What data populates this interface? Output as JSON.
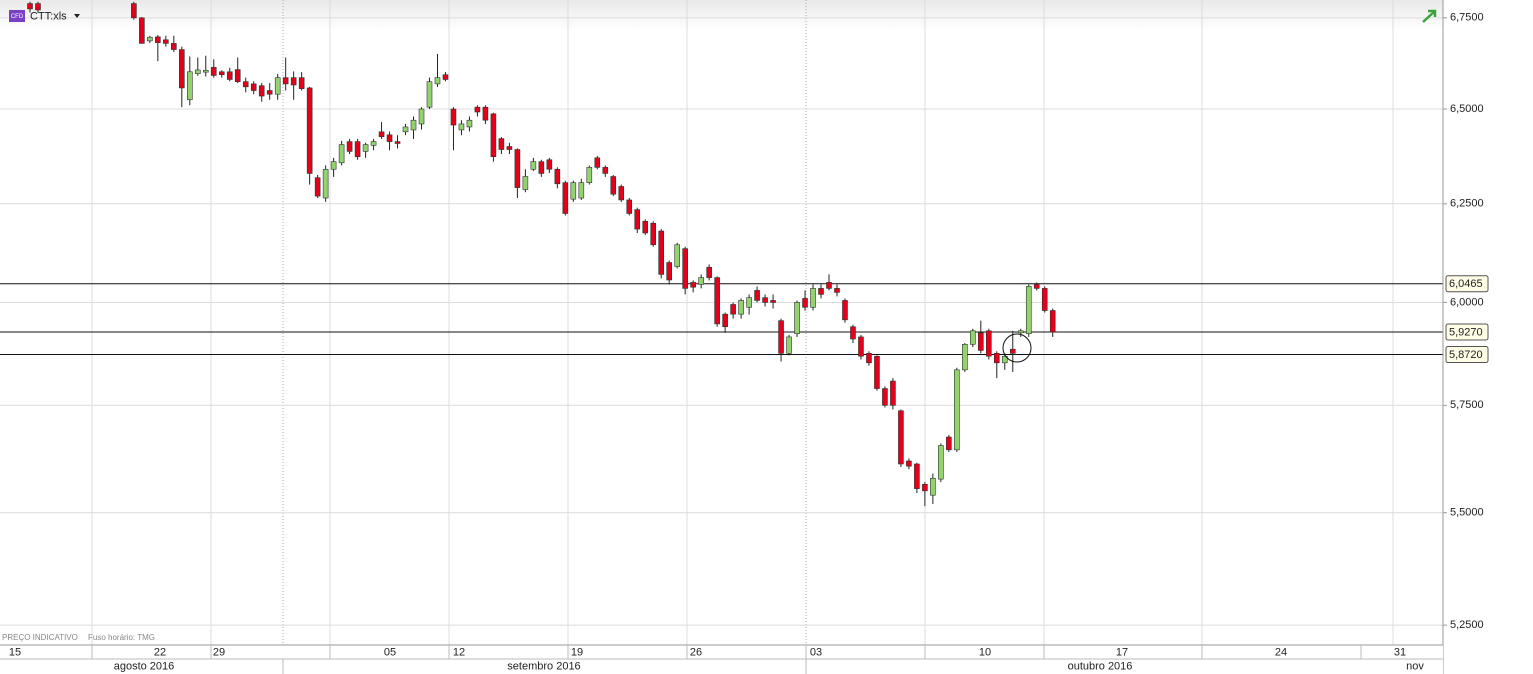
{
  "chart_data": {
    "type": "candlestick",
    "symbol_badge": "CFD",
    "symbol": "CTT:xls",
    "footer": [
      "PREÇO INDICATIVO",
      "Fuso horário: TMG"
    ],
    "up_color": "#92d36e",
    "down_color": "#e3001b",
    "log_scale": true,
    "grid": true,
    "ylim": [
      5.207,
      6.8
    ],
    "yticks": [
      {
        "value": 5.25,
        "label": "5,2500"
      },
      {
        "value": 5.5,
        "label": "5,5000"
      },
      {
        "value": 5.75,
        "label": "5,7500"
      },
      {
        "value": 6.0,
        "label": "6,0000"
      },
      {
        "value": 6.25,
        "label": "6,2500"
      },
      {
        "value": 6.5,
        "label": "6,5000"
      },
      {
        "value": 6.75,
        "label": "6,7500"
      }
    ],
    "hlines": [
      {
        "value": 6.0465,
        "label": "6,0465"
      },
      {
        "value": 5.927,
        "label": "5,9270"
      },
      {
        "value": 5.872,
        "label": "5,8720"
      }
    ],
    "x_day_labels": [
      "15",
      "22",
      "29",
      "05",
      "12",
      "19",
      "26",
      "03",
      "10",
      "17",
      "24",
      "31"
    ],
    "x_month_labels": [
      "agosto 2016",
      "setembro 2016",
      "outubro 2016",
      "nov"
    ],
    "categories": [
      null,
      null,
      null,
      null,
      null,
      null,
      null,
      null,
      null,
      null,
      null,
      null,
      null,
      null,
      null,
      null,
      null,
      null,
      null,
      null,
      null,
      null,
      null,
      null,
      null,
      null,
      null,
      null,
      null,
      null,
      null,
      null,
      null,
      null,
      null,
      null,
      null,
      null,
      null,
      null,
      null,
      null,
      null,
      null,
      null,
      null,
      null,
      null,
      null,
      null,
      null,
      null,
      null,
      null,
      null,
      null,
      null,
      null,
      null,
      null,
      null,
      null,
      null,
      null,
      null,
      null,
      null,
      null,
      null,
      null,
      null,
      null,
      null,
      null,
      null,
      null,
      null,
      null,
      null,
      null,
      null,
      null,
      null,
      null,
      null,
      null,
      null,
      null,
      null,
      null,
      null,
      null,
      null,
      null,
      null,
      null,
      null,
      null,
      null,
      null,
      null,
      null,
      null,
      null,
      null,
      null,
      null,
      null,
      null,
      null,
      null,
      null,
      null,
      null,
      null,
      null,
      null,
      null,
      null,
      null,
      null,
      null,
      null,
      null,
      null,
      null,
      null,
      null,
      null
    ],
    "ohlc": [
      [
        6.79,
        6.795,
        6.765,
        6.775
      ],
      [
        6.79,
        6.795,
        6.765,
        6.772
      ],
      null,
      null,
      null,
      null,
      null,
      null,
      null,
      null,
      null,
      null,
      null,
      [
        6.79,
        6.795,
        6.745,
        6.75
      ],
      [
        6.75,
        6.752,
        6.678,
        6.679
      ],
      [
        6.686,
        6.7,
        6.68,
        6.696
      ],
      [
        6.697,
        6.702,
        6.63,
        6.681
      ],
      [
        6.689,
        6.7,
        6.67,
        6.679
      ],
      [
        6.679,
        6.7,
        6.655,
        6.662
      ],
      [
        6.662,
        6.67,
        6.505,
        6.557
      ],
      [
        6.525,
        6.643,
        6.51,
        6.601
      ],
      [
        6.596,
        6.64,
        6.59,
        6.606
      ],
      [
        6.6,
        6.645,
        6.588,
        6.605
      ],
      [
        6.613,
        6.635,
        6.585,
        6.591
      ],
      [
        6.601,
        6.605,
        6.585,
        6.593
      ],
      [
        6.601,
        6.612,
        6.575,
        6.58
      ],
      [
        6.607,
        6.64,
        6.57,
        6.574
      ],
      [
        6.574,
        6.585,
        6.545,
        6.56
      ],
      [
        6.568,
        6.575,
        6.54,
        6.55
      ],
      [
        6.563,
        6.57,
        6.52,
        6.535
      ],
      [
        6.55,
        6.57,
        6.525,
        6.54
      ],
      [
        6.54,
        6.595,
        6.525,
        6.585
      ],
      [
        6.585,
        6.64,
        6.55,
        6.568
      ],
      [
        6.585,
        6.602,
        6.525,
        6.565
      ],
      [
        6.585,
        6.6,
        6.55,
        6.555
      ],
      [
        6.557,
        6.56,
        6.3,
        6.329
      ],
      [
        6.318,
        6.325,
        6.265,
        6.27
      ],
      [
        6.265,
        6.35,
        6.255,
        6.34
      ],
      [
        6.34,
        6.37,
        6.32,
        6.36
      ],
      [
        6.357,
        6.415,
        6.35,
        6.405
      ],
      [
        6.413,
        6.42,
        6.38,
        6.387
      ],
      [
        6.413,
        6.42,
        6.365,
        6.373
      ],
      [
        6.387,
        6.41,
        6.37,
        6.405
      ],
      [
        6.403,
        6.42,
        6.39,
        6.413
      ],
      [
        6.439,
        6.465,
        6.42,
        6.426
      ],
      [
        6.431,
        6.44,
        6.39,
        6.413
      ],
      [
        6.413,
        6.43,
        6.395,
        6.408
      ],
      [
        6.439,
        6.46,
        6.43,
        6.452
      ],
      [
        6.444,
        6.48,
        6.42,
        6.47
      ],
      [
        6.46,
        6.505,
        6.445,
        6.5
      ],
      [
        6.505,
        6.585,
        6.5,
        6.574
      ],
      [
        6.568,
        6.65,
        6.56,
        6.585
      ],
      [
        6.593,
        6.6,
        6.575,
        6.58
      ],
      [
        6.5,
        6.505,
        6.39,
        6.457
      ],
      [
        6.444,
        6.47,
        6.43,
        6.46
      ],
      [
        6.452,
        6.48,
        6.44,
        6.47
      ],
      [
        6.505,
        6.51,
        6.48,
        6.492
      ],
      [
        6.505,
        6.51,
        6.46,
        6.47
      ],
      [
        6.487,
        6.49,
        6.36,
        6.373
      ],
      [
        6.421,
        6.425,
        6.38,
        6.392
      ],
      [
        6.4,
        6.41,
        6.38,
        6.392
      ],
      [
        6.392,
        6.395,
        6.265,
        6.292
      ],
      [
        6.287,
        6.34,
        6.28,
        6.321
      ],
      [
        6.34,
        6.37,
        6.335,
        6.36
      ],
      [
        6.36,
        6.365,
        6.32,
        6.329
      ],
      [
        6.365,
        6.37,
        6.33,
        6.34
      ],
      [
        6.34,
        6.345,
        6.29,
        6.302
      ],
      [
        6.305,
        6.31,
        6.22,
        6.225
      ],
      [
        6.262,
        6.31,
        6.255,
        6.305
      ],
      [
        6.265,
        6.315,
        6.26,
        6.305
      ],
      [
        6.305,
        6.35,
        6.3,
        6.345
      ],
      [
        6.37,
        6.375,
        6.34,
        6.345
      ],
      [
        6.345,
        6.35,
        6.32,
        6.329
      ],
      [
        6.321,
        6.325,
        6.27,
        6.275
      ],
      [
        6.295,
        6.3,
        6.255,
        6.26
      ],
      [
        6.26,
        6.265,
        6.22,
        6.225
      ],
      [
        6.235,
        6.24,
        6.175,
        6.185
      ],
      [
        6.205,
        6.21,
        6.17,
        6.175
      ],
      [
        6.2,
        6.205,
        6.14,
        6.145
      ],
      [
        6.18,
        6.185,
        6.06,
        6.07
      ],
      [
        6.1,
        6.105,
        6.045,
        6.056
      ],
      [
        6.09,
        6.15,
        6.085,
        6.145
      ],
      [
        6.135,
        6.14,
        6.02,
        6.035
      ],
      [
        6.05,
        6.055,
        6.025,
        6.038
      ],
      [
        6.045,
        6.07,
        6.035,
        6.062
      ],
      [
        6.088,
        6.095,
        6.055,
        6.062
      ],
      [
        6.062,
        6.065,
        5.94,
        5.947
      ],
      [
        5.971,
        5.975,
        5.925,
        5.94
      ],
      [
        5.995,
        6.0,
        5.96,
        5.971
      ],
      [
        5.971,
        6.01,
        5.96,
        6.005
      ],
      [
        5.988,
        6.02,
        5.97,
        6.012
      ],
      [
        6.03,
        6.04,
        6.0,
        6.005
      ],
      [
        6.012,
        6.02,
        5.99,
        6.0
      ],
      [
        6.005,
        6.02,
        5.985,
        6.0
      ],
      [
        5.955,
        5.96,
        5.855,
        5.875
      ],
      [
        5.875,
        5.92,
        5.87,
        5.915
      ],
      [
        5.923,
        6.005,
        5.915,
        6.0
      ],
      [
        6.01,
        6.03,
        5.98,
        5.988
      ],
      [
        5.988,
        6.045,
        5.98,
        6.035
      ],
      [
        6.035,
        6.045,
        6.01,
        6.02
      ],
      [
        6.05,
        6.07,
        6.03,
        6.035
      ],
      [
        6.035,
        6.045,
        6.015,
        6.025
      ],
      [
        6.005,
        6.01,
        5.95,
        5.957
      ],
      [
        5.94,
        5.945,
        5.9,
        5.91
      ],
      [
        5.915,
        5.92,
        5.86,
        5.868
      ],
      [
        5.875,
        5.88,
        5.845,
        5.852
      ],
      [
        5.868,
        5.87,
        5.785,
        5.79
      ],
      [
        5.79,
        5.795,
        5.745,
        5.75
      ],
      [
        5.808,
        5.815,
        5.74,
        5.75
      ],
      [
        5.737,
        5.74,
        5.605,
        5.612
      ],
      [
        5.619,
        5.625,
        5.6,
        5.607
      ],
      [
        5.612,
        5.615,
        5.545,
        5.555
      ],
      [
        5.565,
        5.57,
        5.515,
        5.55
      ],
      [
        5.54,
        5.59,
        5.52,
        5.579
      ],
      [
        5.577,
        5.66,
        5.57,
        5.655
      ],
      [
        5.675,
        5.68,
        5.64,
        5.645
      ],
      [
        5.645,
        5.84,
        5.64,
        5.835
      ],
      [
        5.835,
        5.9,
        5.83,
        5.897
      ],
      [
        5.897,
        5.935,
        5.89,
        5.93
      ],
      [
        5.925,
        5.955,
        5.875,
        5.882
      ],
      [
        5.93,
        5.935,
        5.86,
        5.868
      ],
      [
        5.875,
        5.88,
        5.815,
        5.852
      ],
      [
        5.852,
        5.875,
        5.835,
        5.868
      ],
      [
        5.885,
        5.93,
        5.83,
        5.875
      ],
      [
        5.925,
        5.935,
        5.915,
        5.93
      ],
      [
        5.923,
        6.045,
        5.915,
        6.04
      ],
      [
        6.045,
        6.05,
        6.03,
        6.035
      ],
      [
        6.035,
        6.04,
        5.975,
        5.98
      ],
      [
        5.98,
        5.985,
        5.915,
        5.927
      ]
    ]
  }
}
